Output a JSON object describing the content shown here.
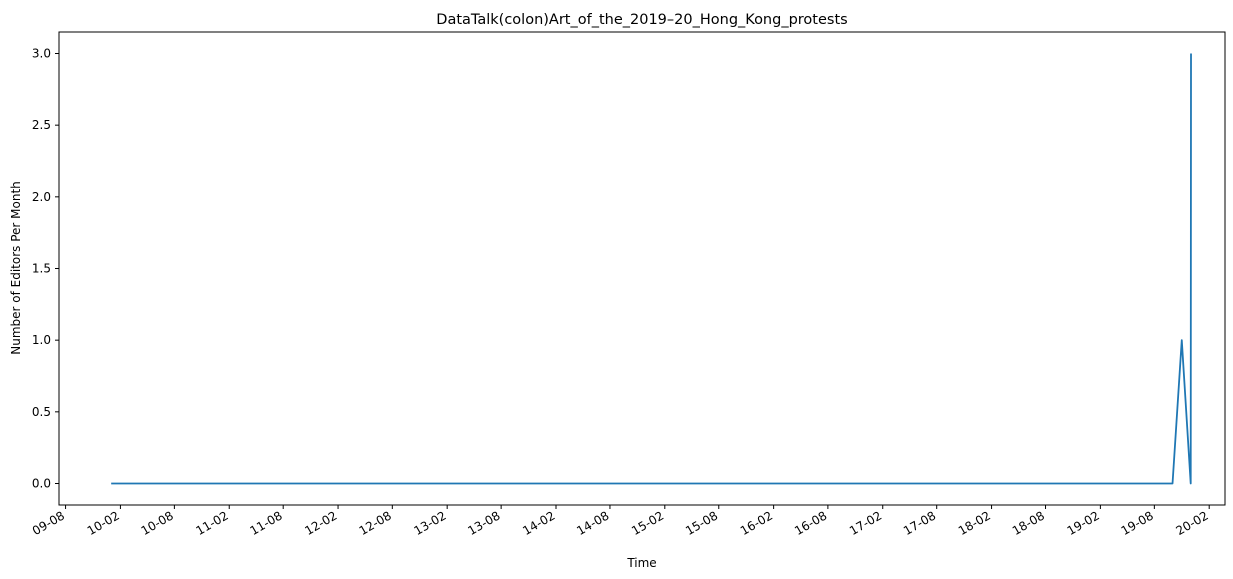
{
  "chart_data": {
    "type": "line",
    "title": "DataTalk(colon)Art_of_the_2019–20_Hong_Kong_protests",
    "xlabel": "Time",
    "ylabel": "Number of Editors Per Month",
    "ylim": [
      -0.15,
      3.15
    ],
    "xlim": [
      "2009-07-10",
      "2020-03-25"
    ],
    "x_tick_labels": [
      "09-08",
      "10-02",
      "10-08",
      "11-02",
      "11-08",
      "12-02",
      "12-08",
      "13-02",
      "13-08",
      "14-02",
      "14-08",
      "15-02",
      "15-08",
      "16-02",
      "16-08",
      "17-02",
      "17-08",
      "18-02",
      "18-08",
      "19-02",
      "19-08",
      "20-02"
    ],
    "x_tick_dates": [
      "2009-08-01",
      "2010-02-01",
      "2010-08-01",
      "2011-02-01",
      "2011-08-01",
      "2012-02-01",
      "2012-08-01",
      "2013-02-01",
      "2013-08-01",
      "2014-02-01",
      "2014-08-01",
      "2015-02-01",
      "2015-08-01",
      "2016-02-01",
      "2016-08-01",
      "2017-02-01",
      "2017-08-01",
      "2018-02-01",
      "2018-08-01",
      "2019-02-01",
      "2019-08-01",
      "2020-02-01"
    ],
    "y_ticks": [
      0.0,
      0.5,
      1.0,
      1.5,
      2.0,
      2.5,
      3.0
    ],
    "y_tick_labels": [
      "0.0",
      "0.5",
      "1.0",
      "1.5",
      "2.0",
      "2.5",
      "3.0"
    ],
    "grid": false,
    "series": [
      {
        "color": "#1f77b4",
        "x": [
          "2010-01-01",
          "2019-10-01",
          "2019-11-01",
          "2019-12-01",
          "2019-12-02"
        ],
        "y": [
          0,
          0,
          1,
          0,
          3
        ]
      }
    ]
  }
}
